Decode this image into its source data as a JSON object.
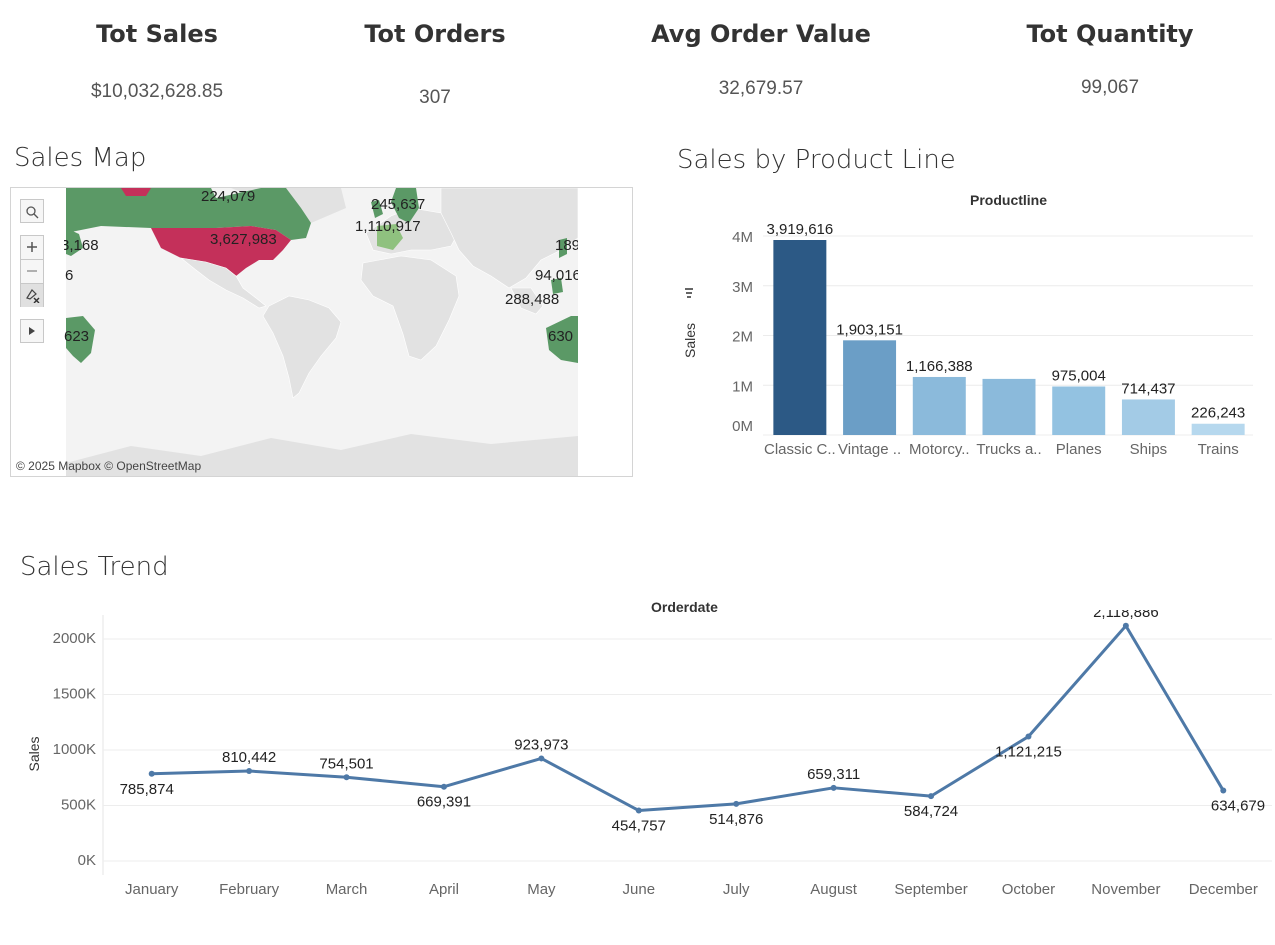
{
  "kpis": [
    {
      "label": "Tot Sales",
      "value": "$10,032,628.85"
    },
    {
      "label": "Tot Orders",
      "value": "307"
    },
    {
      "label": "Avg Order Value",
      "value": "32,679.57"
    },
    {
      "label": "Tot Quantity",
      "value": "99,067"
    }
  ],
  "map": {
    "title": "Sales Map",
    "credit": "© 2025 Mapbox © OpenStreetMap",
    "labels": [
      "224,079",
      "3,627,983",
      "245,637",
      "1,110,917",
      "3,168",
      "6",
      "623",
      "189",
      "94,016",
      "288,488",
      "630"
    ],
    "colors": {
      "land": "#e2e2e2",
      "high": "#c4305a",
      "mid": "#5b9966",
      "low": "#8fc17f"
    }
  },
  "chart_data": [
    {
      "type": "bar",
      "title": "Sales by Product Line",
      "header": "Productline",
      "ylabel": "Sales",
      "categories": [
        "Classic C..",
        "Vintage ..",
        "Motorcy..",
        "Trucks a..",
        "Planes",
        "Ships",
        "Trains"
      ],
      "values": [
        3919616,
        1903151,
        1166388,
        1127790,
        975004,
        714437,
        226243
      ],
      "value_labels": [
        "3,919,616",
        "1,903,151",
        "1,166,388",
        "",
        "975,004",
        "714,437",
        "226,243"
      ],
      "yticks": [
        "0M",
        "1M",
        "2M",
        "3M",
        "4M"
      ],
      "ylim": [
        0,
        4000000
      ],
      "colors": [
        "#2c5985",
        "#6b9ec6",
        "#8bbadb",
        "#8bbadb",
        "#93c2e1",
        "#a3cbe6",
        "#b6d8ee"
      ],
      "grid": true
    },
    {
      "type": "line",
      "title": "Sales Trend",
      "header": "Orderdate",
      "ylabel": "Sales",
      "x": [
        "January",
        "February",
        "March",
        "April",
        "May",
        "June",
        "July",
        "August",
        "September",
        "October",
        "November",
        "December"
      ],
      "values": [
        785874,
        810442,
        754501,
        669391,
        923973,
        454757,
        514876,
        659311,
        584724,
        1121215,
        2118886,
        634679
      ],
      "value_labels": [
        "785,874",
        "810,442",
        "754,501",
        "669,391",
        "923,973",
        "454,757",
        "514,876",
        "659,311",
        "584,724",
        "1,121,215",
        "2,118,886",
        "634,679"
      ],
      "label_positions": [
        "below",
        "above",
        "above",
        "below",
        "above",
        "below",
        "below",
        "above",
        "below",
        "below",
        "above",
        "below"
      ],
      "yticks": [
        "0K",
        "500K",
        "1000K",
        "1500K",
        "2000K"
      ],
      "ylim": [
        0,
        2000000
      ],
      "color": "#4e79a7",
      "grid": true
    }
  ]
}
